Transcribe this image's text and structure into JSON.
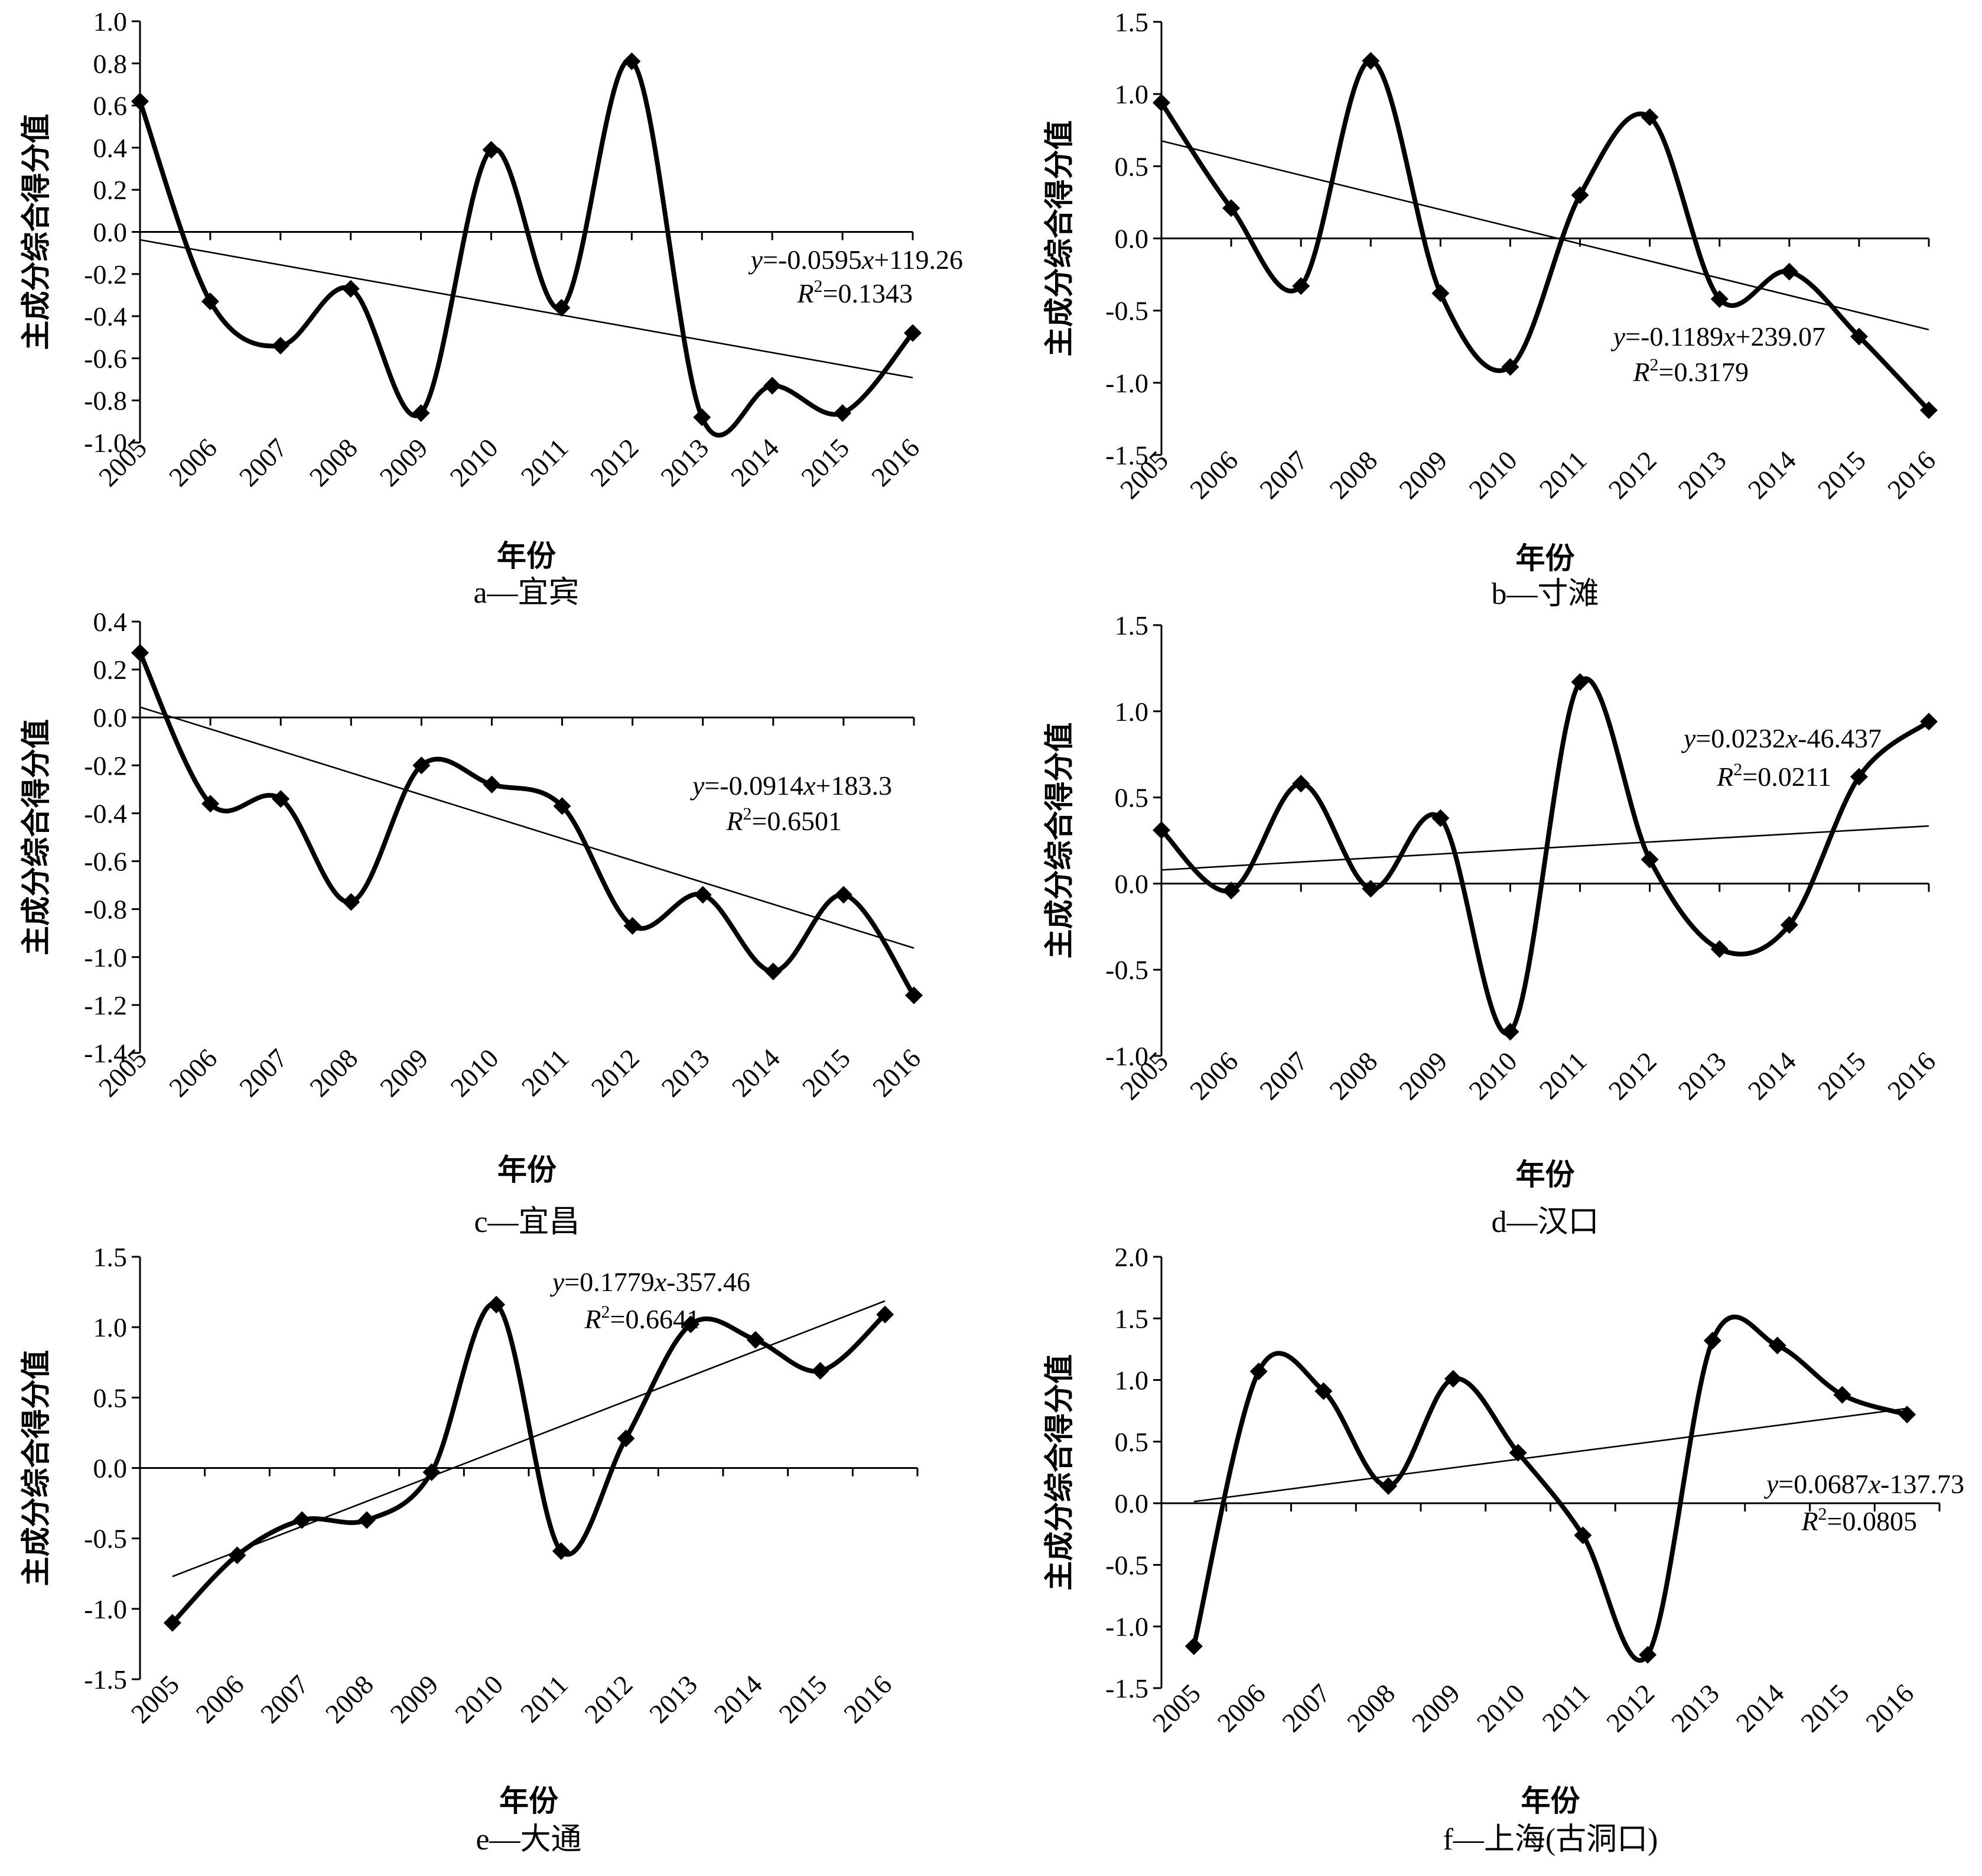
{
  "chart_data": [
    {
      "type": "line",
      "caption": "a—宜宾",
      "xlabel": "年份",
      "ylabel": "主成分综合得分值",
      "x": [
        "2005",
        "2006",
        "2007",
        "2008",
        "2009",
        "2010",
        "2011",
        "2012",
        "2013",
        "2014",
        "2015",
        "2016"
      ],
      "y_ticks": [
        "1.0",
        "0.8",
        "0.6",
        "0.4",
        "0.2",
        "0.0",
        "-0.2",
        "-0.4",
        "-0.6",
        "-0.8",
        "-1.0"
      ],
      "ylim": [
        -1.0,
        1.0
      ],
      "values": [
        0.62,
        -0.33,
        -0.54,
        -0.27,
        -0.86,
        0.39,
        -0.36,
        0.81,
        -0.88,
        -0.73,
        -0.86,
        -0.48
      ],
      "trend": {
        "slope": -0.0595,
        "intercept": 119.26
      },
      "equation": {
        "y": "y",
        "mid": "=-0.0595",
        "x": "x",
        "tail": "+119.26"
      },
      "r2": {
        "r": "R",
        "sup": "2",
        "val": "=0.1343"
      }
    },
    {
      "type": "line",
      "caption": "b—寸滩",
      "xlabel": "年份",
      "ylabel": "主成分综合得分值",
      "x": [
        "2005",
        "2006",
        "2007",
        "2008",
        "2009",
        "2010",
        "2011",
        "2012",
        "2013",
        "2014",
        "2015",
        "2016"
      ],
      "y_ticks": [
        "1.5",
        "1.0",
        "0.5",
        "0.0",
        "-0.5",
        "-1.0",
        "-1.5"
      ],
      "ylim": [
        -1.5,
        1.5
      ],
      "values": [
        0.94,
        0.21,
        -0.33,
        1.23,
        -0.38,
        -0.89,
        0.3,
        0.84,
        -0.42,
        -0.23,
        -0.68,
        -1.19
      ],
      "trend": {
        "slope": -0.1189,
        "intercept": 239.07
      },
      "equation": {
        "y": "y",
        "mid": "=-0.1189",
        "x": "x",
        "tail": "+239.07"
      },
      "r2": {
        "r": "R",
        "sup": "2",
        "val": "=0.3179"
      }
    },
    {
      "type": "line",
      "caption": "c—宜昌",
      "xlabel": "年份",
      "ylabel": "主成分综合得分值",
      "x": [
        "2005",
        "2006",
        "2007",
        "2008",
        "2009",
        "2010",
        "2011",
        "2012",
        "2013",
        "2014",
        "2015",
        "2016"
      ],
      "y_ticks": [
        "0.4",
        "0.2",
        "0.0",
        "-0.2",
        "-0.4",
        "-0.6",
        "-0.8",
        "-1.0",
        "-1.2",
        "-1.4"
      ],
      "ylim": [
        -1.4,
        0.4
      ],
      "values": [
        0.27,
        -0.36,
        -0.34,
        -0.77,
        -0.2,
        -0.28,
        -0.37,
        -0.87,
        -0.74,
        -1.06,
        -0.74,
        -1.16
      ],
      "trend": {
        "slope": -0.0914,
        "intercept": 183.3
      },
      "equation": {
        "y": "y",
        "mid": "=-0.0914",
        "x": "x",
        "tail": "+183.3"
      },
      "r2": {
        "r": "R",
        "sup": "2",
        "val": "=0.6501"
      }
    },
    {
      "type": "line",
      "caption": "d—汉口",
      "xlabel": "年份",
      "ylabel": "主成分综合得分值",
      "x": [
        "2005",
        "2006",
        "2007",
        "2008",
        "2009",
        "2010",
        "2011",
        "2012",
        "2013",
        "2014",
        "2015",
        "2016"
      ],
      "y_ticks": [
        "1.5",
        "1.0",
        "0.5",
        "0.0",
        "-0.5",
        "-1.0"
      ],
      "ylim": [
        -1.0,
        1.5
      ],
      "values": [
        0.31,
        -0.04,
        0.58,
        -0.03,
        0.38,
        -0.86,
        1.17,
        0.14,
        -0.38,
        -0.24,
        0.62,
        0.94
      ],
      "trend": {
        "slope": 0.0232,
        "intercept": -46.437
      },
      "equation": {
        "y": "y",
        "mid": "=0.0232",
        "x": "x",
        "tail": "-46.437"
      },
      "r2": {
        "r": "R",
        "sup": "2",
        "val": "=0.0211"
      }
    },
    {
      "type": "line",
      "caption": "e—大通",
      "xlabel": "年份",
      "ylabel": "主成分综合得分值",
      "x": [
        "2005",
        "2006",
        "2007",
        "2008",
        "2009",
        "2010",
        "2011",
        "2012",
        "2013",
        "2014",
        "2015",
        "2016"
      ],
      "y_ticks": [
        "1.5",
        "1.0",
        "0.5",
        "0.0",
        "-0.5",
        "-1.0",
        "-1.5"
      ],
      "ylim": [
        -1.5,
        1.5
      ],
      "values": [
        -1.1,
        -0.62,
        -0.37,
        -0.37,
        -0.03,
        1.16,
        -0.59,
        0.21,
        1.02,
        0.91,
        0.69,
        1.09
      ],
      "trend": {
        "slope": 0.1779,
        "intercept": -357.46
      },
      "equation": {
        "y": "y",
        "mid": "=0.1779",
        "x": "x",
        "tail": "-357.46"
      },
      "r2": {
        "r": "R",
        "sup": "2",
        "val": "=0.6641"
      }
    },
    {
      "type": "line",
      "caption": "f—上海(古洞口)",
      "xlabel": "年份",
      "ylabel": "主成分综合得分值",
      "x": [
        "2005",
        "2006",
        "2007",
        "2008",
        "2009",
        "2010",
        "2011",
        "2012",
        "2013",
        "2014",
        "2015",
        "2016"
      ],
      "y_ticks": [
        "2.0",
        "1.5",
        "1.0",
        "0.5",
        "0.0",
        "-0.5",
        "-1.0",
        "-1.5"
      ],
      "ylim": [
        -1.5,
        2.0
      ],
      "values": [
        -1.16,
        1.07,
        0.91,
        0.14,
        1.01,
        0.41,
        -0.26,
        -1.23,
        1.32,
        1.28,
        0.88,
        0.72
      ],
      "trend": {
        "slope": 0.0687,
        "intercept": -137.73
      },
      "equation": {
        "y": "y",
        "mid": "=0.0687",
        "x": "x",
        "tail": "-137.73"
      },
      "r2": {
        "r": "R",
        "sup": "2",
        "val": "=0.0805"
      }
    }
  ]
}
